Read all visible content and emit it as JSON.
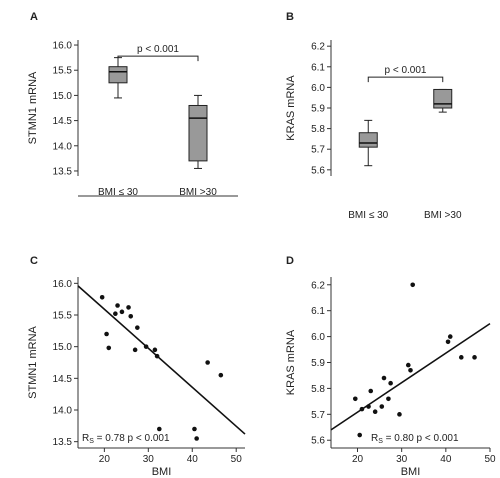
{
  "chart_data": [
    {
      "id": "A",
      "panel_label": "A",
      "type": "box",
      "ylabel": "STMN1 mRNA",
      "ylim": [
        13.4,
        16.1
      ],
      "yticks": [
        13.5,
        14.0,
        14.5,
        15.0,
        15.5,
        16.0
      ],
      "ytick_labels": [
        "13.5",
        "14.0",
        "14.5",
        "15.0",
        "15.5",
        "16.0"
      ],
      "categories": [
        "BMI ≤ 30",
        "BMI >30"
      ],
      "boxes": [
        {
          "category": "BMI ≤ 30",
          "whisker_low": 14.95,
          "q1": 15.25,
          "median": 15.47,
          "q3": 15.57,
          "whisker_high": 15.75
        },
        {
          "category": "BMI >30",
          "whisker_low": 13.55,
          "q1": 13.7,
          "median": 14.55,
          "q3": 14.8,
          "whisker_high": 15.0
        }
      ],
      "significance": {
        "text": "p < 0.001",
        "level": 15.78
      }
    },
    {
      "id": "B",
      "panel_label": "B",
      "type": "box",
      "ylabel": "KRAS mRNA",
      "ylim": [
        5.57,
        6.23
      ],
      "yticks": [
        5.6,
        5.7,
        5.8,
        5.9,
        6.0,
        6.1,
        6.2
      ],
      "ytick_labels": [
        "5.6",
        "5.7",
        "5.8",
        "5.9",
        "6.0",
        "6.1",
        "6.2"
      ],
      "categories": [
        "BMI ≤ 30",
        "BMI >30"
      ],
      "boxes": [
        {
          "category": "BMI ≤ 30",
          "whisker_low": 5.62,
          "q1": 5.71,
          "median": 5.73,
          "q3": 5.78,
          "whisker_high": 5.84
        },
        {
          "category": "BMI >30",
          "whisker_low": 5.88,
          "q1": 5.9,
          "median": 5.92,
          "q3": 5.99,
          "whisker_high": 5.99
        }
      ],
      "significance": {
        "text": "p < 0.001",
        "level": 6.05
      }
    },
    {
      "id": "C",
      "panel_label": "C",
      "type": "scatter",
      "xlabel": "BMI",
      "ylabel": "STMN1 mRNA",
      "xlim": [
        14,
        52
      ],
      "ylim": [
        13.4,
        16.1
      ],
      "xticks": [
        20,
        30,
        40,
        50
      ],
      "xtick_labels": [
        "20",
        "30",
        "40",
        "50"
      ],
      "yticks": [
        13.5,
        14.0,
        14.5,
        15.0,
        15.5,
        16.0
      ],
      "ytick_labels": [
        "13.5",
        "14.0",
        "14.5",
        "15.0",
        "15.5",
        "16.0"
      ],
      "x": [
        19.5,
        20.5,
        21,
        22.5,
        23,
        24,
        25.5,
        26,
        27,
        27.5,
        29.5,
        31.5,
        32,
        32.5,
        40.5,
        41,
        43.5,
        46.5
      ],
      "y": [
        15.78,
        15.2,
        14.98,
        15.52,
        15.65,
        15.55,
        15.62,
        15.48,
        14.95,
        15.3,
        15.0,
        14.95,
        14.85,
        13.7,
        13.7,
        13.55,
        14.75,
        14.55
      ],
      "trendline": {
        "x": [
          14,
          52
        ],
        "y": [
          15.96,
          13.62
        ]
      },
      "annotation": {
        "rs_symbol": "R",
        "rs_subscript": "S",
        "text": "= 0.78  p < 0.001"
      }
    },
    {
      "id": "D",
      "panel_label": "D",
      "type": "scatter",
      "xlabel": "BMI",
      "ylabel": "KRAS mRNA",
      "xlim": [
        14,
        50
      ],
      "ylim": [
        5.57,
        6.23
      ],
      "xticks": [
        20,
        30,
        40,
        50
      ],
      "xtick_labels": [
        "20",
        "30",
        "40",
        "50"
      ],
      "yticks": [
        5.6,
        5.7,
        5.8,
        5.9,
        6.0,
        6.1,
        6.2
      ],
      "ytick_labels": [
        "5.6",
        "5.7",
        "5.8",
        "5.9",
        "6.0",
        "6.1",
        "6.2"
      ],
      "x": [
        19.5,
        20.5,
        21,
        22.5,
        23,
        24,
        25.5,
        26,
        27,
        27.5,
        29.5,
        31.5,
        32,
        32.5,
        40.5,
        41,
        43.5,
        46.5
      ],
      "y": [
        5.76,
        5.62,
        5.72,
        5.73,
        5.79,
        5.71,
        5.73,
        5.84,
        5.76,
        5.82,
        5.7,
        5.89,
        5.87,
        6.2,
        5.98,
        6.0,
        5.92,
        5.92
      ],
      "trendline": {
        "x": [
          14,
          50
        ],
        "y": [
          5.64,
          6.05
        ]
      },
      "annotation": {
        "rs_symbol": "R",
        "rs_subscript": "S",
        "text": "= 0.80  p < 0.001"
      }
    }
  ]
}
